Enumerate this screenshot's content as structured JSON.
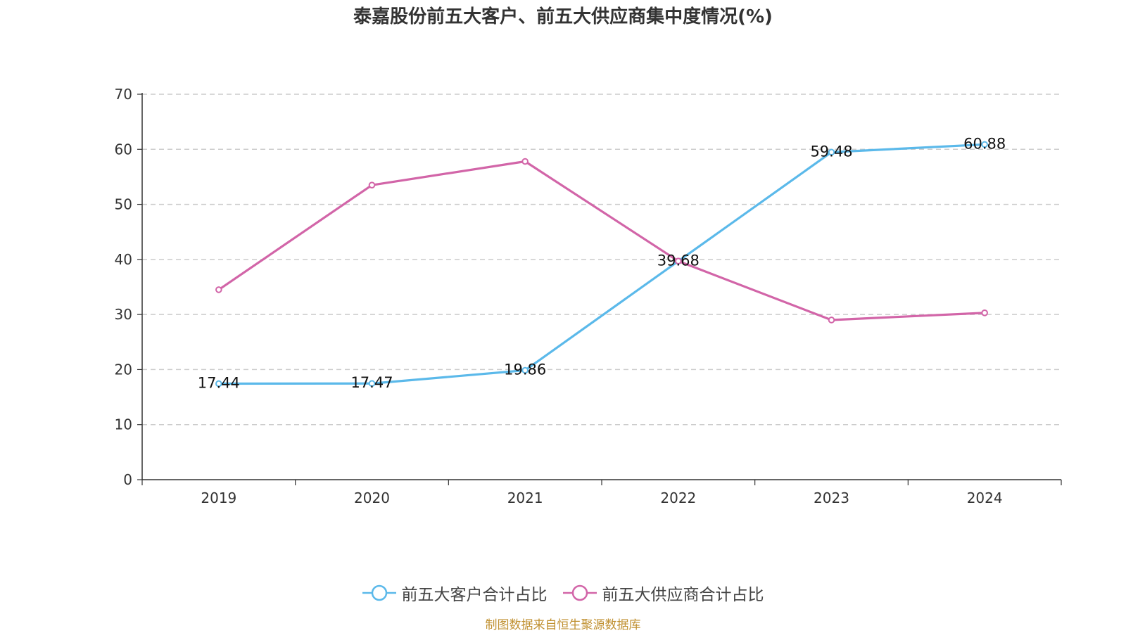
{
  "chart_data": {
    "type": "line",
    "title": "泰嘉股份前五大客户、前五大供应商集中度情况(%)",
    "categories": [
      "2019",
      "2020",
      "2021",
      "2022",
      "2023",
      "2024"
    ],
    "ylim": [
      0,
      70
    ],
    "yticks": [
      "0",
      "10",
      "20",
      "30",
      "40",
      "50",
      "60",
      "70"
    ],
    "grid": true,
    "legend_position": "bottom",
    "series": [
      {
        "name": "前五大客户合计占比",
        "color": "#5bb9ea",
        "values": [
          17.44,
          17.47,
          19.86,
          39.68,
          59.48,
          60.88
        ],
        "labels": [
          "17.44",
          "17.47",
          "19.86",
          "39.68",
          "59.48",
          "60.88"
        ]
      },
      {
        "name": "前五大供应商合计占比",
        "color": "#d265a8",
        "values": [
          34.5,
          53.5,
          57.8,
          39.7,
          29.0,
          30.3
        ]
      }
    ],
    "source": "制图数据来自恒生聚源数据库"
  }
}
